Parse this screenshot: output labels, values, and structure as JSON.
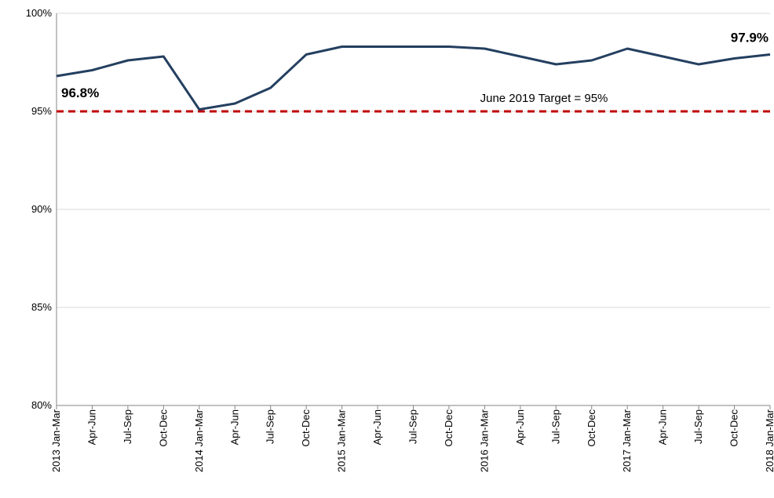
{
  "chart_data": {
    "type": "line",
    "categories": [
      "2013 Jan-Mar",
      "Apr-Jun",
      "Jul-Sep",
      "Oct-Dec",
      "2014 Jan-Mar",
      "Apr-Jun",
      "Jul-Sep",
      "Oct-Dec",
      "2015 Jan-Mar",
      "Apr-Jun",
      "Jul-Sep",
      "Oct-Dec",
      "2016 Jan-Mar",
      "Apr-Jun",
      "Jul-Sep",
      "Oct-Dec",
      "2017 Jan-Mar",
      "Apr-Jun",
      "Jul-Sep",
      "Oct-Dec",
      "2018 Jan-Mar"
    ],
    "series": [
      {
        "color": "#243f60",
        "values": [
          96.8,
          97.1,
          97.6,
          97.8,
          95.1,
          95.4,
          96.2,
          97.9,
          98.3,
          98.3,
          98.3,
          98.3,
          98.2,
          97.8,
          97.4,
          97.6,
          98.2,
          97.8,
          97.4,
          97.7,
          97.9
        ],
        "value_labels": [
          "96.8%",
          null,
          null,
          null,
          null,
          null,
          null,
          null,
          null,
          null,
          null,
          null,
          null,
          null,
          null,
          null,
          null,
          null,
          null,
          null,
          "97.9%"
        ]
      }
    ],
    "target": {
      "value": 95,
      "label": "June 2019 Target = 95%",
      "color": "#c00000"
    },
    "ylim": [
      80,
      100
    ],
    "yticks": [
      {
        "value": 80,
        "label": "80%"
      },
      {
        "value": 85,
        "label": "85%"
      },
      {
        "value": 90,
        "label": "90%"
      },
      {
        "value": 95,
        "label": "95%"
      },
      {
        "value": 100,
        "label": "100%"
      }
    ],
    "grid": true
  }
}
